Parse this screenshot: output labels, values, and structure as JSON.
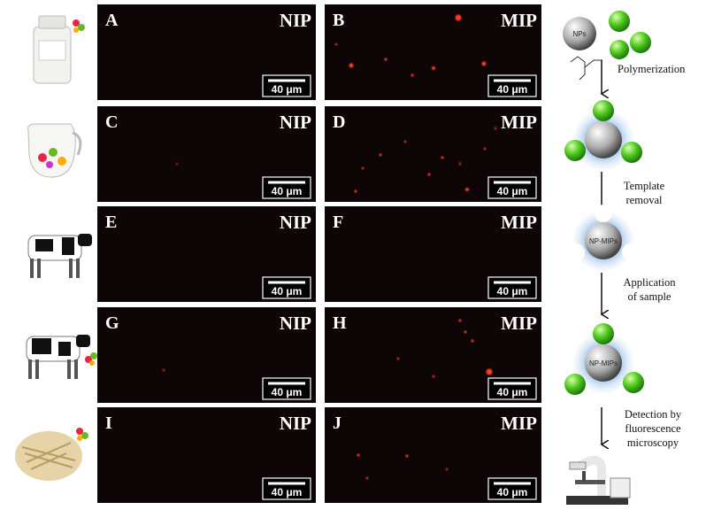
{
  "panels": [
    {
      "letter": "A",
      "label": "NIP",
      "scale": "40 μm"
    },
    {
      "letter": "B",
      "label": "MIP",
      "scale": "40 μm"
    },
    {
      "letter": "C",
      "label": "NIP",
      "scale": "40 μm"
    },
    {
      "letter": "D",
      "label": "MIP",
      "scale": "40 μm"
    },
    {
      "letter": "E",
      "label": "NIP",
      "scale": "40 μm"
    },
    {
      "letter": "F",
      "label": "MIP",
      "scale": "40 μm"
    },
    {
      "letter": "G",
      "label": "NIP",
      "scale": "40 μm"
    },
    {
      "letter": "H",
      "label": "MIP",
      "scale": "40 μm"
    },
    {
      "letter": "I",
      "label": "NIP",
      "scale": "40 μm"
    },
    {
      "letter": "J",
      "label": "MIP",
      "scale": "40 μm"
    }
  ],
  "diagram": {
    "nps": "NPs",
    "steps": [
      [
        "Polymerization"
      ],
      [
        "Template",
        "removal"
      ],
      [
        "Application",
        "of sample"
      ],
      [
        "Detection by",
        "fluorescence",
        "microscopy"
      ]
    ],
    "particles": [
      "NP-MIPs",
      "NP-MIPs"
    ]
  }
}
